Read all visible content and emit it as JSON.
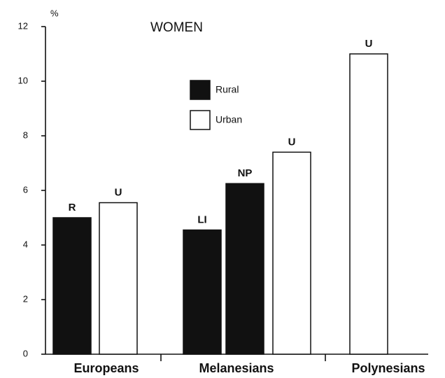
{
  "chart_data": {
    "type": "bar",
    "title": "WOMEN",
    "y_unit": "%",
    "categories": [
      "Europeans",
      "Melanesians",
      "Polynesians"
    ],
    "series": [
      {
        "name": "Rural",
        "color": "#111111"
      },
      {
        "name": "Urban",
        "color": "#ffffff"
      }
    ],
    "bars": [
      {
        "label": "R",
        "category": "Europeans",
        "series": "Rural",
        "value": 5.0
      },
      {
        "label": "U",
        "category": "Europeans",
        "series": "Urban",
        "value": 5.55
      },
      {
        "label": "LI",
        "category": "Melanesians",
        "series": "Rural",
        "value": 4.55
      },
      {
        "label": "NP",
        "category": "Melanesians",
        "series": "Rural",
        "value": 6.25
      },
      {
        "label": "U",
        "category": "Melanesians",
        "series": "Urban",
        "value": 7.4
      },
      {
        "label": "U",
        "category": "Polynesians",
        "series": "Urban",
        "value": 11.0
      }
    ],
    "ylim": [
      0,
      12
    ],
    "yticks": [
      0,
      2,
      4,
      6,
      8,
      10,
      12
    ],
    "grid": false
  }
}
